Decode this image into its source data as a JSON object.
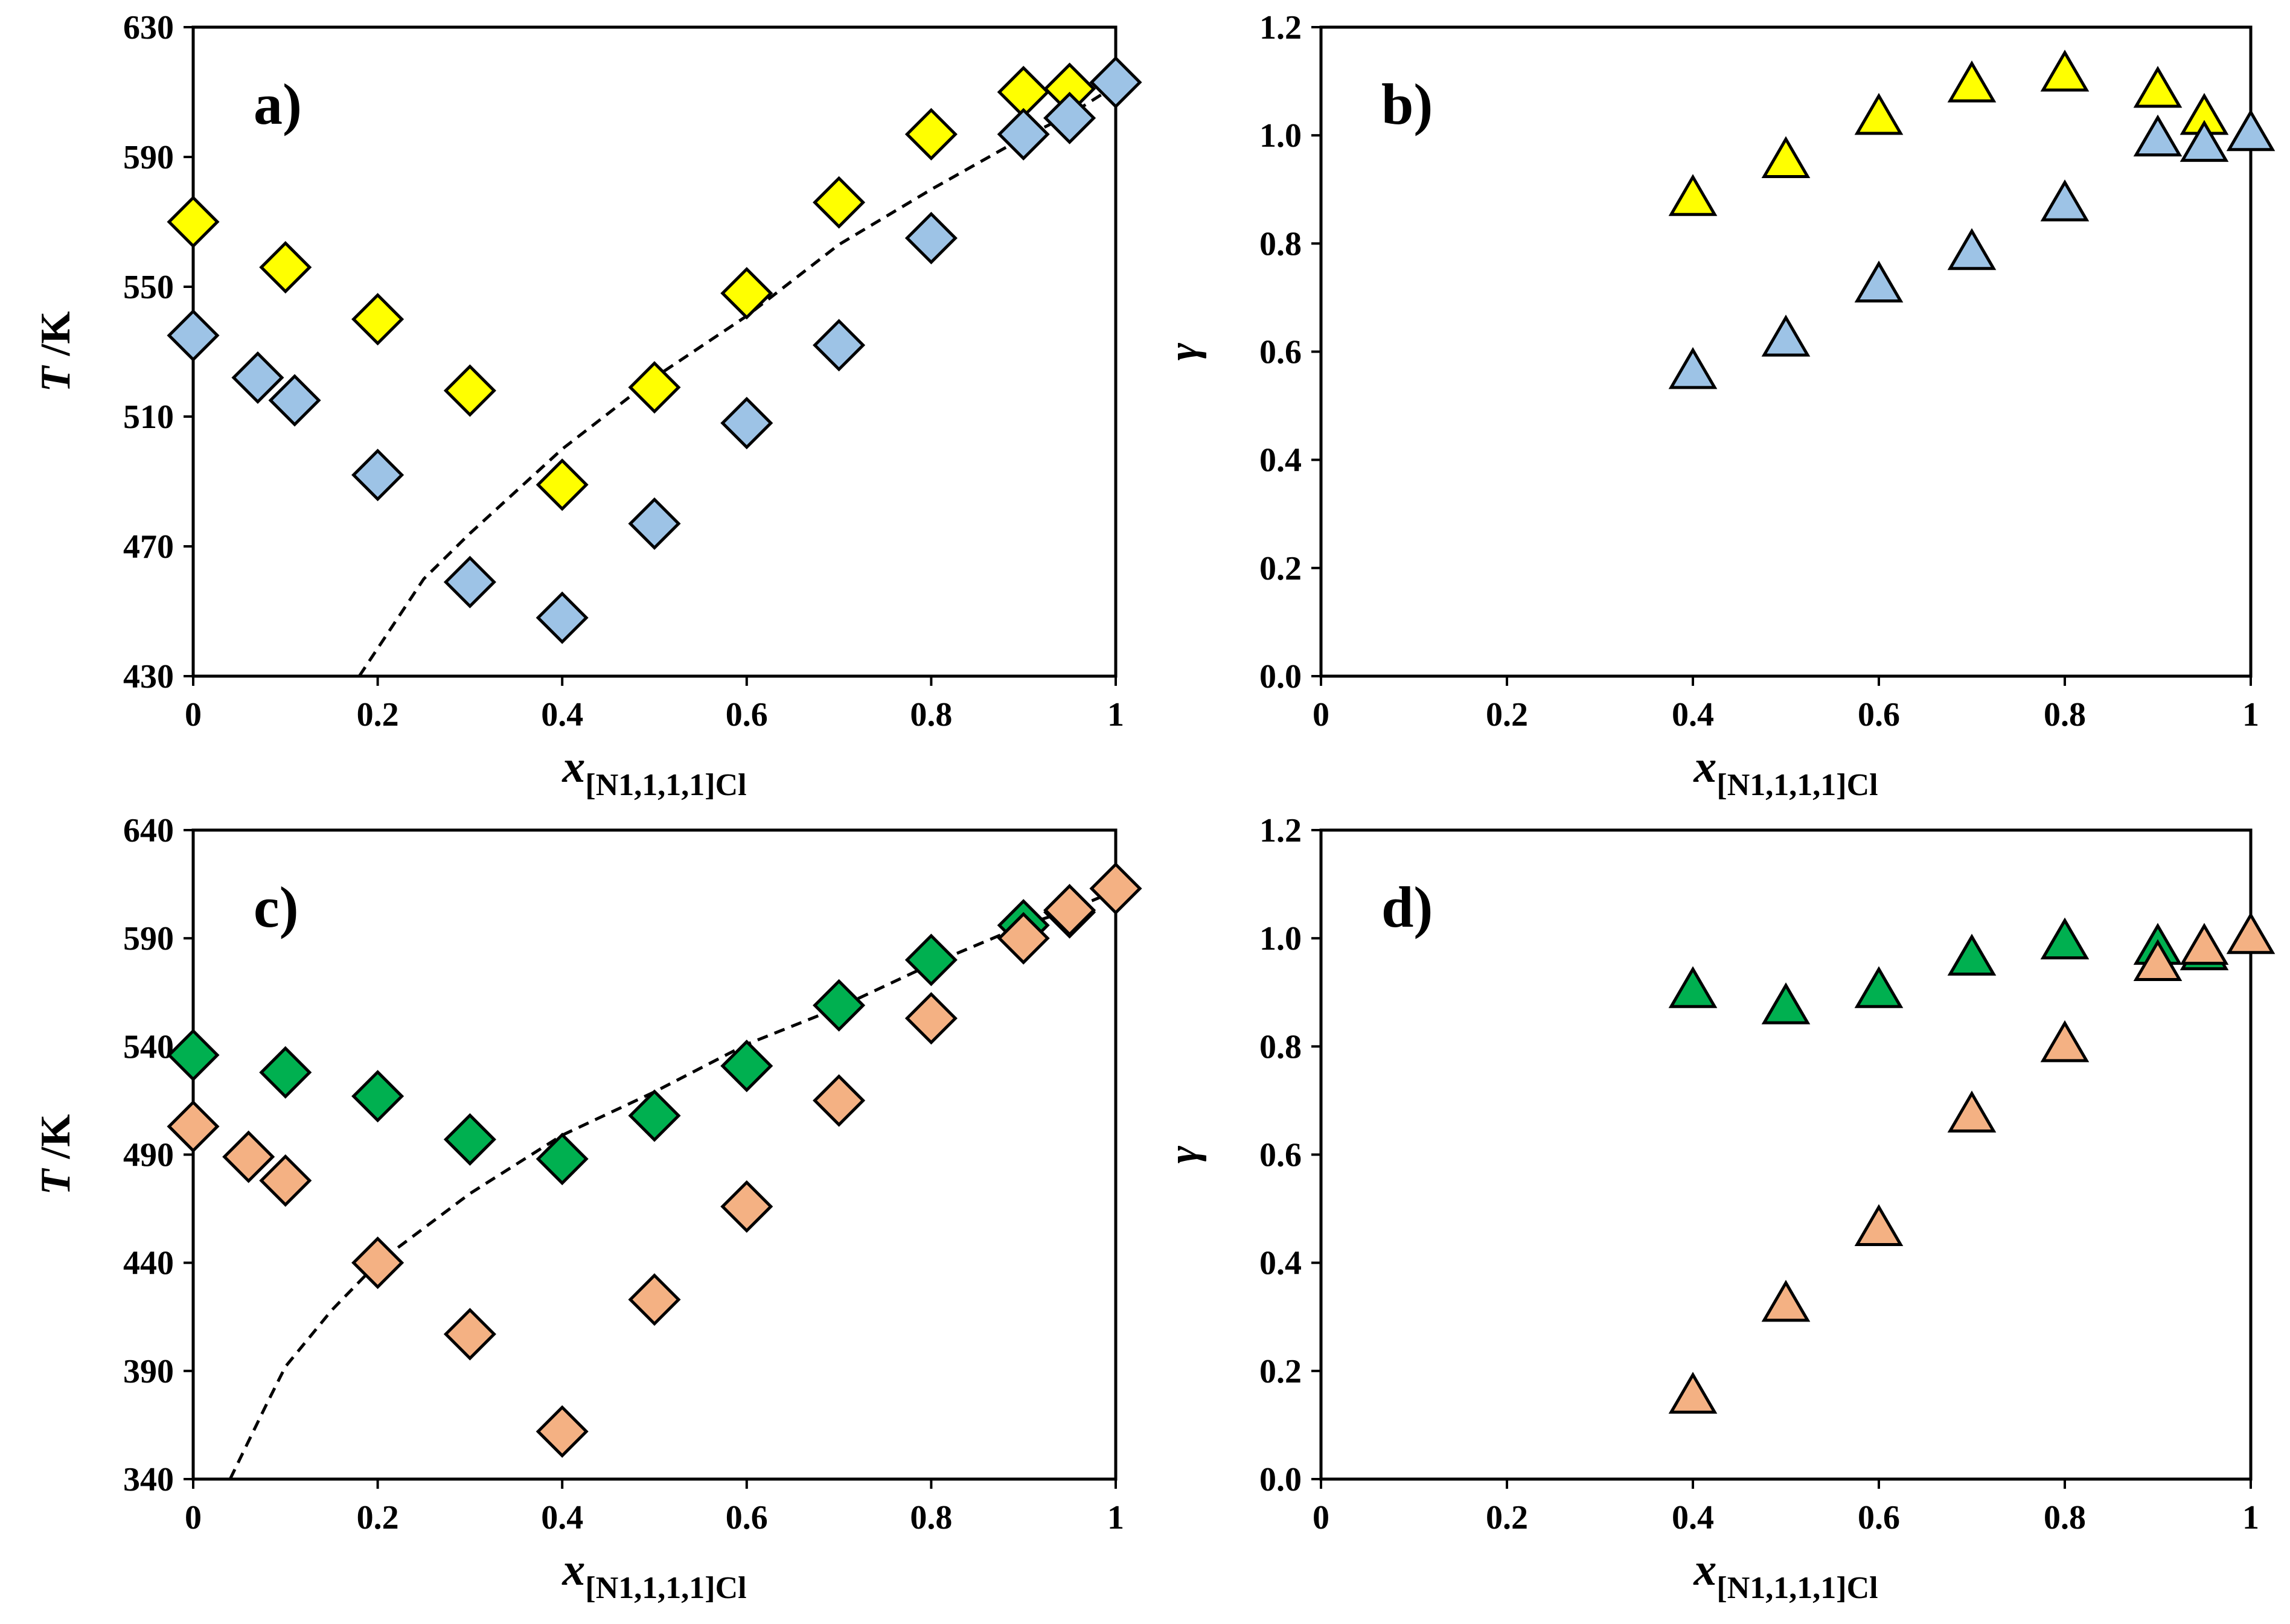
{
  "xlabel_main": "x",
  "xlabel_sub": "[N1,1,1,1]Cl",
  "chart_data": [
    {
      "panel": "a)",
      "type": "scatter",
      "ylabel_var": "T",
      "ylabel_unit": " /K",
      "xlim": [
        0,
        1
      ],
      "ylim": [
        430,
        630
      ],
      "xticks": [
        0,
        0.2,
        0.4,
        0.6,
        0.8,
        1
      ],
      "xtick_labels": [
        "0",
        "0.2",
        "0.4",
        "0.6",
        "0.8",
        "1"
      ],
      "yticks": [
        430,
        470,
        510,
        550,
        590,
        630
      ],
      "ytick_labels": [
        "430",
        "470",
        "510",
        "550",
        "590",
        "630"
      ],
      "series": [
        {
          "name": "yellow",
          "marker": "diamond",
          "color": "#FFFF00",
          "x": [
            0,
            0.1,
            0.2,
            0.3,
            0.4,
            0.5,
            0.6,
            0.7,
            0.8,
            0.9,
            0.95
          ],
          "y": [
            570,
            556,
            540,
            518,
            489,
            519,
            548,
            576,
            597,
            610,
            611
          ]
        },
        {
          "name": "blue",
          "marker": "diamond",
          "color": "#9DC3E6",
          "x": [
            0,
            0.07,
            0.11,
            0.2,
            0.3,
            0.4,
            0.5,
            0.6,
            0.7,
            0.8,
            0.9,
            0.95,
            1
          ],
          "y": [
            535,
            522,
            515,
            492,
            459,
            448,
            477,
            508,
            532,
            565,
            597,
            602,
            613
          ]
        }
      ],
      "fit": {
        "x": [
          0.18,
          0.25,
          0.3,
          0.4,
          0.5,
          0.6,
          0.7,
          0.8,
          0.9,
          0.95,
          1.0
        ],
        "y": [
          430,
          460,
          474,
          500,
          522,
          541,
          563,
          580,
          596,
          603,
          612
        ]
      }
    },
    {
      "panel": "b)",
      "type": "scatter",
      "ylabel_var": "γ",
      "ylabel_unit": "",
      "xlim": [
        0,
        1
      ],
      "ylim": [
        0,
        1.2
      ],
      "xticks": [
        0,
        0.2,
        0.4,
        0.6,
        0.8,
        1
      ],
      "xtick_labels": [
        "0",
        "0.2",
        "0.4",
        "0.6",
        "0.8",
        "1"
      ],
      "yticks": [
        0,
        0.2,
        0.4,
        0.6,
        0.8,
        1.0,
        1.2
      ],
      "ytick_labels": [
        "0.0",
        "0.2",
        "0.4",
        "0.6",
        "0.8",
        "1.0",
        "1.2"
      ],
      "series": [
        {
          "name": "yellow",
          "marker": "triangle",
          "color": "#FFFF00",
          "x": [
            0.4,
            0.5,
            0.6,
            0.7,
            0.8,
            0.9,
            0.95
          ],
          "y": [
            0.88,
            0.95,
            1.03,
            1.09,
            1.11,
            1.08,
            1.03
          ]
        },
        {
          "name": "blue",
          "marker": "triangle",
          "color": "#9DC3E6",
          "x": [
            0.4,
            0.5,
            0.6,
            0.7,
            0.8,
            0.9,
            0.95,
            1.0
          ],
          "y": [
            0.56,
            0.62,
            0.72,
            0.78,
            0.87,
            0.99,
            0.98,
            1.0
          ]
        }
      ]
    },
    {
      "panel": "c)",
      "type": "scatter",
      "ylabel_var": "T",
      "ylabel_unit": " /K",
      "xlim": [
        0,
        1
      ],
      "ylim": [
        340,
        640
      ],
      "xticks": [
        0,
        0.2,
        0.4,
        0.6,
        0.8,
        1
      ],
      "xtick_labels": [
        "0",
        "0.2",
        "0.4",
        "0.6",
        "0.8",
        "1"
      ],
      "yticks": [
        340,
        390,
        440,
        490,
        540,
        590,
        640
      ],
      "ytick_labels": [
        "340",
        "390",
        "440",
        "490",
        "540",
        "590",
        "640"
      ],
      "series": [
        {
          "name": "green",
          "marker": "diamond",
          "color": "#00B050",
          "x": [
            0,
            0.1,
            0.2,
            0.3,
            0.4,
            0.5,
            0.6,
            0.7,
            0.8,
            0.9,
            0.95
          ],
          "y": [
            536,
            528,
            517,
            497,
            488,
            508,
            531,
            559,
            580,
            596,
            602
          ]
        },
        {
          "name": "orange",
          "marker": "diamond",
          "color": "#F4B183",
          "x": [
            0,
            0.06,
            0.1,
            0.2,
            0.3,
            0.4,
            0.5,
            0.6,
            0.7,
            0.8,
            0.9,
            0.95,
            1
          ],
          "y": [
            503,
            489,
            478,
            440,
            407,
            362,
            423,
            466,
            515,
            553,
            590,
            603,
            613
          ]
        }
      ],
      "fit": {
        "x": [
          0.04,
          0.08,
          0.1,
          0.15,
          0.2,
          0.3,
          0.4,
          0.5,
          0.6,
          0.7,
          0.8,
          0.9,
          0.95,
          1.0
        ],
        "y": [
          340,
          375,
          392,
          418,
          440,
          472,
          499,
          519,
          541,
          558,
          578,
          596,
          603,
          612
        ]
      }
    },
    {
      "panel": "d)",
      "type": "scatter",
      "ylabel_var": "γ",
      "ylabel_unit": "",
      "xlim": [
        0,
        1
      ],
      "ylim": [
        0,
        1.2
      ],
      "xticks": [
        0,
        0.2,
        0.4,
        0.6,
        0.8,
        1
      ],
      "xtick_labels": [
        "0",
        "0.2",
        "0.4",
        "0.6",
        "0.8",
        "1"
      ],
      "yticks": [
        0,
        0.2,
        0.4,
        0.6,
        0.8,
        1.0,
        1.2
      ],
      "ytick_labels": [
        "0.0",
        "0.2",
        "0.4",
        "0.6",
        "0.8",
        "1.0",
        "1.2"
      ],
      "series": [
        {
          "name": "green",
          "marker": "triangle",
          "color": "#00B050",
          "x": [
            0.4,
            0.5,
            0.6,
            0.7,
            0.8,
            0.9,
            0.95
          ],
          "y": [
            0.9,
            0.87,
            0.9,
            0.96,
            0.99,
            0.98,
            0.97
          ]
        },
        {
          "name": "orange",
          "marker": "triangle",
          "color": "#F4B183",
          "x": [
            0.4,
            0.5,
            0.6,
            0.7,
            0.8,
            0.9,
            0.95,
            1.0
          ],
          "y": [
            0.15,
            0.32,
            0.46,
            0.67,
            0.8,
            0.95,
            0.98,
            1.0
          ]
        }
      ]
    }
  ]
}
